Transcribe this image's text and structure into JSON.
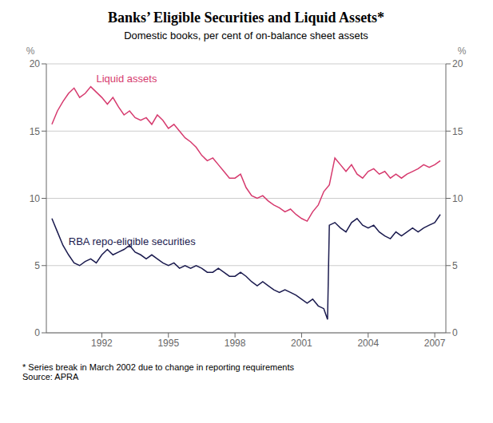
{
  "chart_data": {
    "type": "line",
    "title": "Banks’ Eligible Securities and Liquid Assets*",
    "subtitle": "Domestic books, per cent of on-balance sheet assets",
    "footnote": "* Series break in March 2002 due to change in reporting requirements\nSource: APRA",
    "ylabel": "%",
    "y2label": "%",
    "xlim": [
      1989.5,
      2007.5
    ],
    "xticks": [
      1992,
      1995,
      1998,
      2001,
      2004,
      2007
    ],
    "ylim": [
      0,
      20
    ],
    "yticks": [
      0,
      5,
      10,
      15,
      20
    ],
    "y2lim": [
      0,
      20
    ],
    "y2ticks": [
      0,
      5,
      10,
      15,
      20
    ],
    "grid": true,
    "series": [
      {
        "name": "Liquid assets",
        "color": "#d63a6e",
        "x": [
          1989.75,
          1990.0,
          1990.25,
          1990.5,
          1990.75,
          1991.0,
          1991.25,
          1991.5,
          1991.75,
          1992.0,
          1992.25,
          1992.5,
          1992.75,
          1993.0,
          1993.25,
          1993.5,
          1993.75,
          1994.0,
          1994.25,
          1994.5,
          1994.75,
          1995.0,
          1995.25,
          1995.5,
          1995.75,
          1996.0,
          1996.25,
          1996.5,
          1996.75,
          1997.0,
          1997.25,
          1997.5,
          1997.75,
          1998.0,
          1998.25,
          1998.5,
          1998.75,
          1999.0,
          1999.25,
          1999.5,
          1999.75,
          2000.0,
          2000.25,
          2000.5,
          2000.75,
          2001.0,
          2001.25,
          2001.5,
          2001.75,
          2002.0,
          2002.25,
          2002.5,
          2002.75,
          2003.0,
          2003.25,
          2003.5,
          2003.75,
          2004.0,
          2004.25,
          2004.5,
          2004.75,
          2005.0,
          2005.25,
          2005.5,
          2005.75,
          2006.0,
          2006.25,
          2006.5,
          2006.75,
          2007.0,
          2007.25
        ],
        "values": [
          15.5,
          16.5,
          17.2,
          17.8,
          18.2,
          17.5,
          17.8,
          18.3,
          17.9,
          17.5,
          17.0,
          17.5,
          16.8,
          16.2,
          16.5,
          16.0,
          15.8,
          16.0,
          15.5,
          16.2,
          15.8,
          15.2,
          15.5,
          15.0,
          14.5,
          14.2,
          13.8,
          13.2,
          12.8,
          13.0,
          12.5,
          12.0,
          11.5,
          11.5,
          11.8,
          10.8,
          10.2,
          10.0,
          10.2,
          9.8,
          9.5,
          9.3,
          9.0,
          9.2,
          8.8,
          8.5,
          8.3,
          9.0,
          9.5,
          10.5,
          11.0,
          13.0,
          12.5,
          12.0,
          12.5,
          11.8,
          11.5,
          12.0,
          12.2,
          11.8,
          12.0,
          11.5,
          11.8,
          11.5,
          11.8,
          12.0,
          12.2,
          12.5,
          12.3,
          12.5,
          12.8
        ]
      },
      {
        "name": "RBA repo-eligible securities",
        "color": "#1a1a4e",
        "x": [
          1989.75,
          1990.0,
          1990.25,
          1990.5,
          1990.75,
          1991.0,
          1991.25,
          1991.5,
          1991.75,
          1992.0,
          1992.25,
          1992.5,
          1992.75,
          1993.0,
          1993.25,
          1993.5,
          1993.75,
          1994.0,
          1994.25,
          1994.5,
          1994.75,
          1995.0,
          1995.25,
          1995.5,
          1995.75,
          1996.0,
          1996.25,
          1996.5,
          1996.75,
          1997.0,
          1997.25,
          1997.5,
          1997.75,
          1998.0,
          1998.25,
          1998.5,
          1998.75,
          1999.0,
          1999.25,
          1999.5,
          1999.75,
          2000.0,
          2000.25,
          2000.5,
          2000.75,
          2001.0,
          2001.25,
          2001.5,
          2001.75,
          2002.0,
          2002.17,
          2002.25,
          2002.5,
          2002.75,
          2003.0,
          2003.25,
          2003.5,
          2003.75,
          2004.0,
          2004.25,
          2004.5,
          2004.75,
          2005.0,
          2005.25,
          2005.5,
          2005.75,
          2006.0,
          2006.25,
          2006.5,
          2006.75,
          2007.0,
          2007.25
        ],
        "values": [
          8.5,
          7.5,
          6.5,
          5.8,
          5.2,
          5.0,
          5.3,
          5.5,
          5.2,
          5.8,
          6.2,
          5.8,
          6.0,
          6.2,
          6.5,
          6.0,
          5.8,
          5.5,
          5.8,
          5.5,
          5.2,
          5.0,
          5.2,
          4.8,
          5.0,
          4.8,
          5.0,
          4.8,
          4.5,
          4.5,
          4.8,
          4.5,
          4.2,
          4.2,
          4.5,
          4.2,
          3.8,
          3.5,
          3.8,
          3.5,
          3.2,
          3.0,
          3.2,
          3.0,
          2.8,
          2.5,
          2.2,
          2.5,
          2.0,
          1.8,
          1.0,
          8.0,
          8.2,
          7.8,
          7.5,
          8.2,
          8.5,
          8.0,
          7.8,
          8.0,
          7.5,
          7.2,
          7.0,
          7.5,
          7.2,
          7.5,
          7.8,
          7.5,
          7.8,
          8.0,
          8.2,
          8.8
        ]
      }
    ]
  }
}
